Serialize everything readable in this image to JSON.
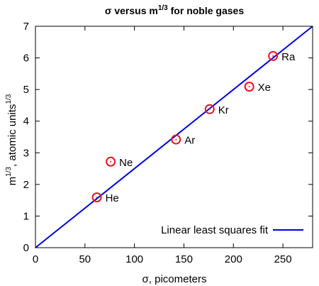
{
  "chart_data": {
    "type": "scatter",
    "title": {
      "main": "σ versus m",
      "sup": "1/3",
      "rest": " for noble gases"
    },
    "xlabel": "σ, picometers",
    "ylabel": {
      "main": "m",
      "sup1": "1/3",
      "middle": ", atomic units",
      "sup2": "1/3"
    },
    "xlim": [
      0,
      280
    ],
    "ylim": [
      0,
      7
    ],
    "xticks": [
      "0",
      "50",
      "100",
      "150",
      "200",
      "250"
    ],
    "yticks": [
      "0",
      "1",
      "2",
      "3",
      "4",
      "5",
      "6",
      "7"
    ],
    "grid": false,
    "legend": {
      "position": "bottom-right",
      "label": "Linear least squares fit"
    },
    "points": [
      {
        "label": "He",
        "x": 62,
        "y": 1.59
      },
      {
        "label": "Ne",
        "x": 76,
        "y": 2.72
      },
      {
        "label": "Ar",
        "x": 142,
        "y": 3.42
      },
      {
        "label": "Kr",
        "x": 176,
        "y": 4.38
      },
      {
        "label": "Xe",
        "x": 216,
        "y": 5.09
      },
      {
        "label": "Ra",
        "x": 240,
        "y": 6.06
      }
    ],
    "fit_line": {
      "x": [
        0,
        280
      ],
      "y": [
        0,
        7
      ]
    },
    "colors": {
      "points": "#e8141e",
      "fit": "#0000e0",
      "axes": "#000000"
    }
  }
}
